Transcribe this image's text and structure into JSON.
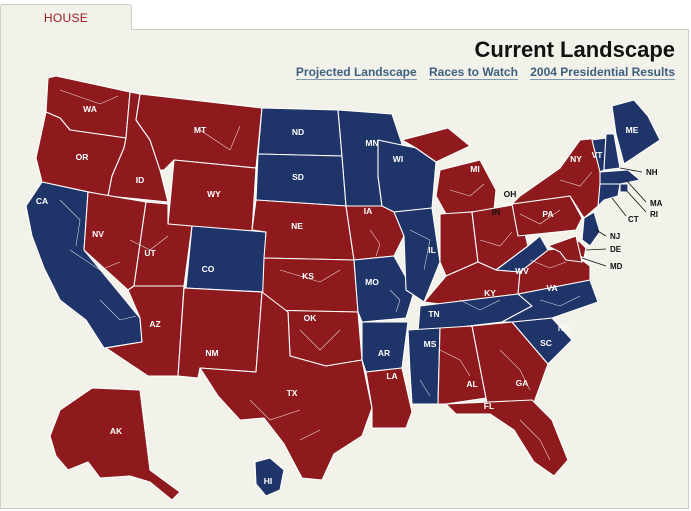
{
  "tab": {
    "label": "HOUSE"
  },
  "header": {
    "title": "Current Landscape"
  },
  "links": [
    {
      "label": "Projected Landscape"
    },
    {
      "label": "Races to Watch"
    },
    {
      "label": "2004 Presidential Results"
    }
  ],
  "colors": {
    "republican": "#8e1a1e",
    "democrat": "#1f3468",
    "background": "#f2f1ea"
  },
  "map": {
    "states": [
      {
        "code": "WA",
        "label": "WA",
        "party": "R"
      },
      {
        "code": "OR",
        "label": "OR",
        "party": "R"
      },
      {
        "code": "CA",
        "label": "CA",
        "party": "D"
      },
      {
        "code": "ID",
        "label": "ID",
        "party": "R"
      },
      {
        "code": "NV",
        "label": "NV",
        "party": "R"
      },
      {
        "code": "MT",
        "label": "MT",
        "party": "R"
      },
      {
        "code": "WY",
        "label": "WY",
        "party": "R"
      },
      {
        "code": "UT",
        "label": "UT",
        "party": "R"
      },
      {
        "code": "AZ",
        "label": "AZ",
        "party": "R"
      },
      {
        "code": "CO",
        "label": "CO",
        "party": "D"
      },
      {
        "code": "NM",
        "label": "NM",
        "party": "R"
      },
      {
        "code": "ND",
        "label": "ND",
        "party": "D"
      },
      {
        "code": "SD",
        "label": "SD",
        "party": "D"
      },
      {
        "code": "NE",
        "label": "NE",
        "party": "R"
      },
      {
        "code": "KS",
        "label": "KS",
        "party": "R"
      },
      {
        "code": "OK",
        "label": "OK",
        "party": "R"
      },
      {
        "code": "TX",
        "label": "TX",
        "party": "R"
      },
      {
        "code": "MN",
        "label": "MN",
        "party": "D"
      },
      {
        "code": "IA",
        "label": "IA",
        "party": "R"
      },
      {
        "code": "MO",
        "label": "MO",
        "party": "D"
      },
      {
        "code": "AR",
        "label": "AR",
        "party": "D"
      },
      {
        "code": "LA",
        "label": "LA",
        "party": "R"
      },
      {
        "code": "WI",
        "label": "WI",
        "party": "D"
      },
      {
        "code": "IL",
        "label": "IL",
        "party": "D"
      },
      {
        "code": "MI",
        "label": "MI",
        "party": "R"
      },
      {
        "code": "IN",
        "label": "IN",
        "party": "R"
      },
      {
        "code": "OH",
        "label": "OH",
        "party": "R"
      },
      {
        "code": "KY",
        "label": "KY",
        "party": "R"
      },
      {
        "code": "TN",
        "label": "TN",
        "party": "D"
      },
      {
        "code": "MS",
        "label": "MS",
        "party": "D"
      },
      {
        "code": "AL",
        "label": "AL",
        "party": "R"
      },
      {
        "code": "GA",
        "label": "GA",
        "party": "R"
      },
      {
        "code": "FL",
        "label": "FL",
        "party": "R"
      },
      {
        "code": "SC",
        "label": "SC",
        "party": "D"
      },
      {
        "code": "NC",
        "label": "NC",
        "party": "D"
      },
      {
        "code": "VA",
        "label": "VA",
        "party": "R"
      },
      {
        "code": "WV",
        "label": "WV",
        "party": "D"
      },
      {
        "code": "PA",
        "label": "PA",
        "party": "R"
      },
      {
        "code": "NY",
        "label": "NY",
        "party": "R"
      },
      {
        "code": "VT",
        "label": "VT",
        "party": "D"
      },
      {
        "code": "NH",
        "label": "NH",
        "party": "D"
      },
      {
        "code": "ME",
        "label": "ME",
        "party": "D"
      },
      {
        "code": "MA",
        "label": "MA",
        "party": "D"
      },
      {
        "code": "RI",
        "label": "RI",
        "party": "D"
      },
      {
        "code": "CT",
        "label": "CT",
        "party": "D"
      },
      {
        "code": "NJ",
        "label": "NJ",
        "party": "D"
      },
      {
        "code": "DE",
        "label": "DE",
        "party": "R"
      },
      {
        "code": "MD",
        "label": "MD",
        "party": "R"
      },
      {
        "code": "AK",
        "label": "AK",
        "party": "R"
      },
      {
        "code": "HI",
        "label": "HI",
        "party": "D"
      }
    ]
  }
}
